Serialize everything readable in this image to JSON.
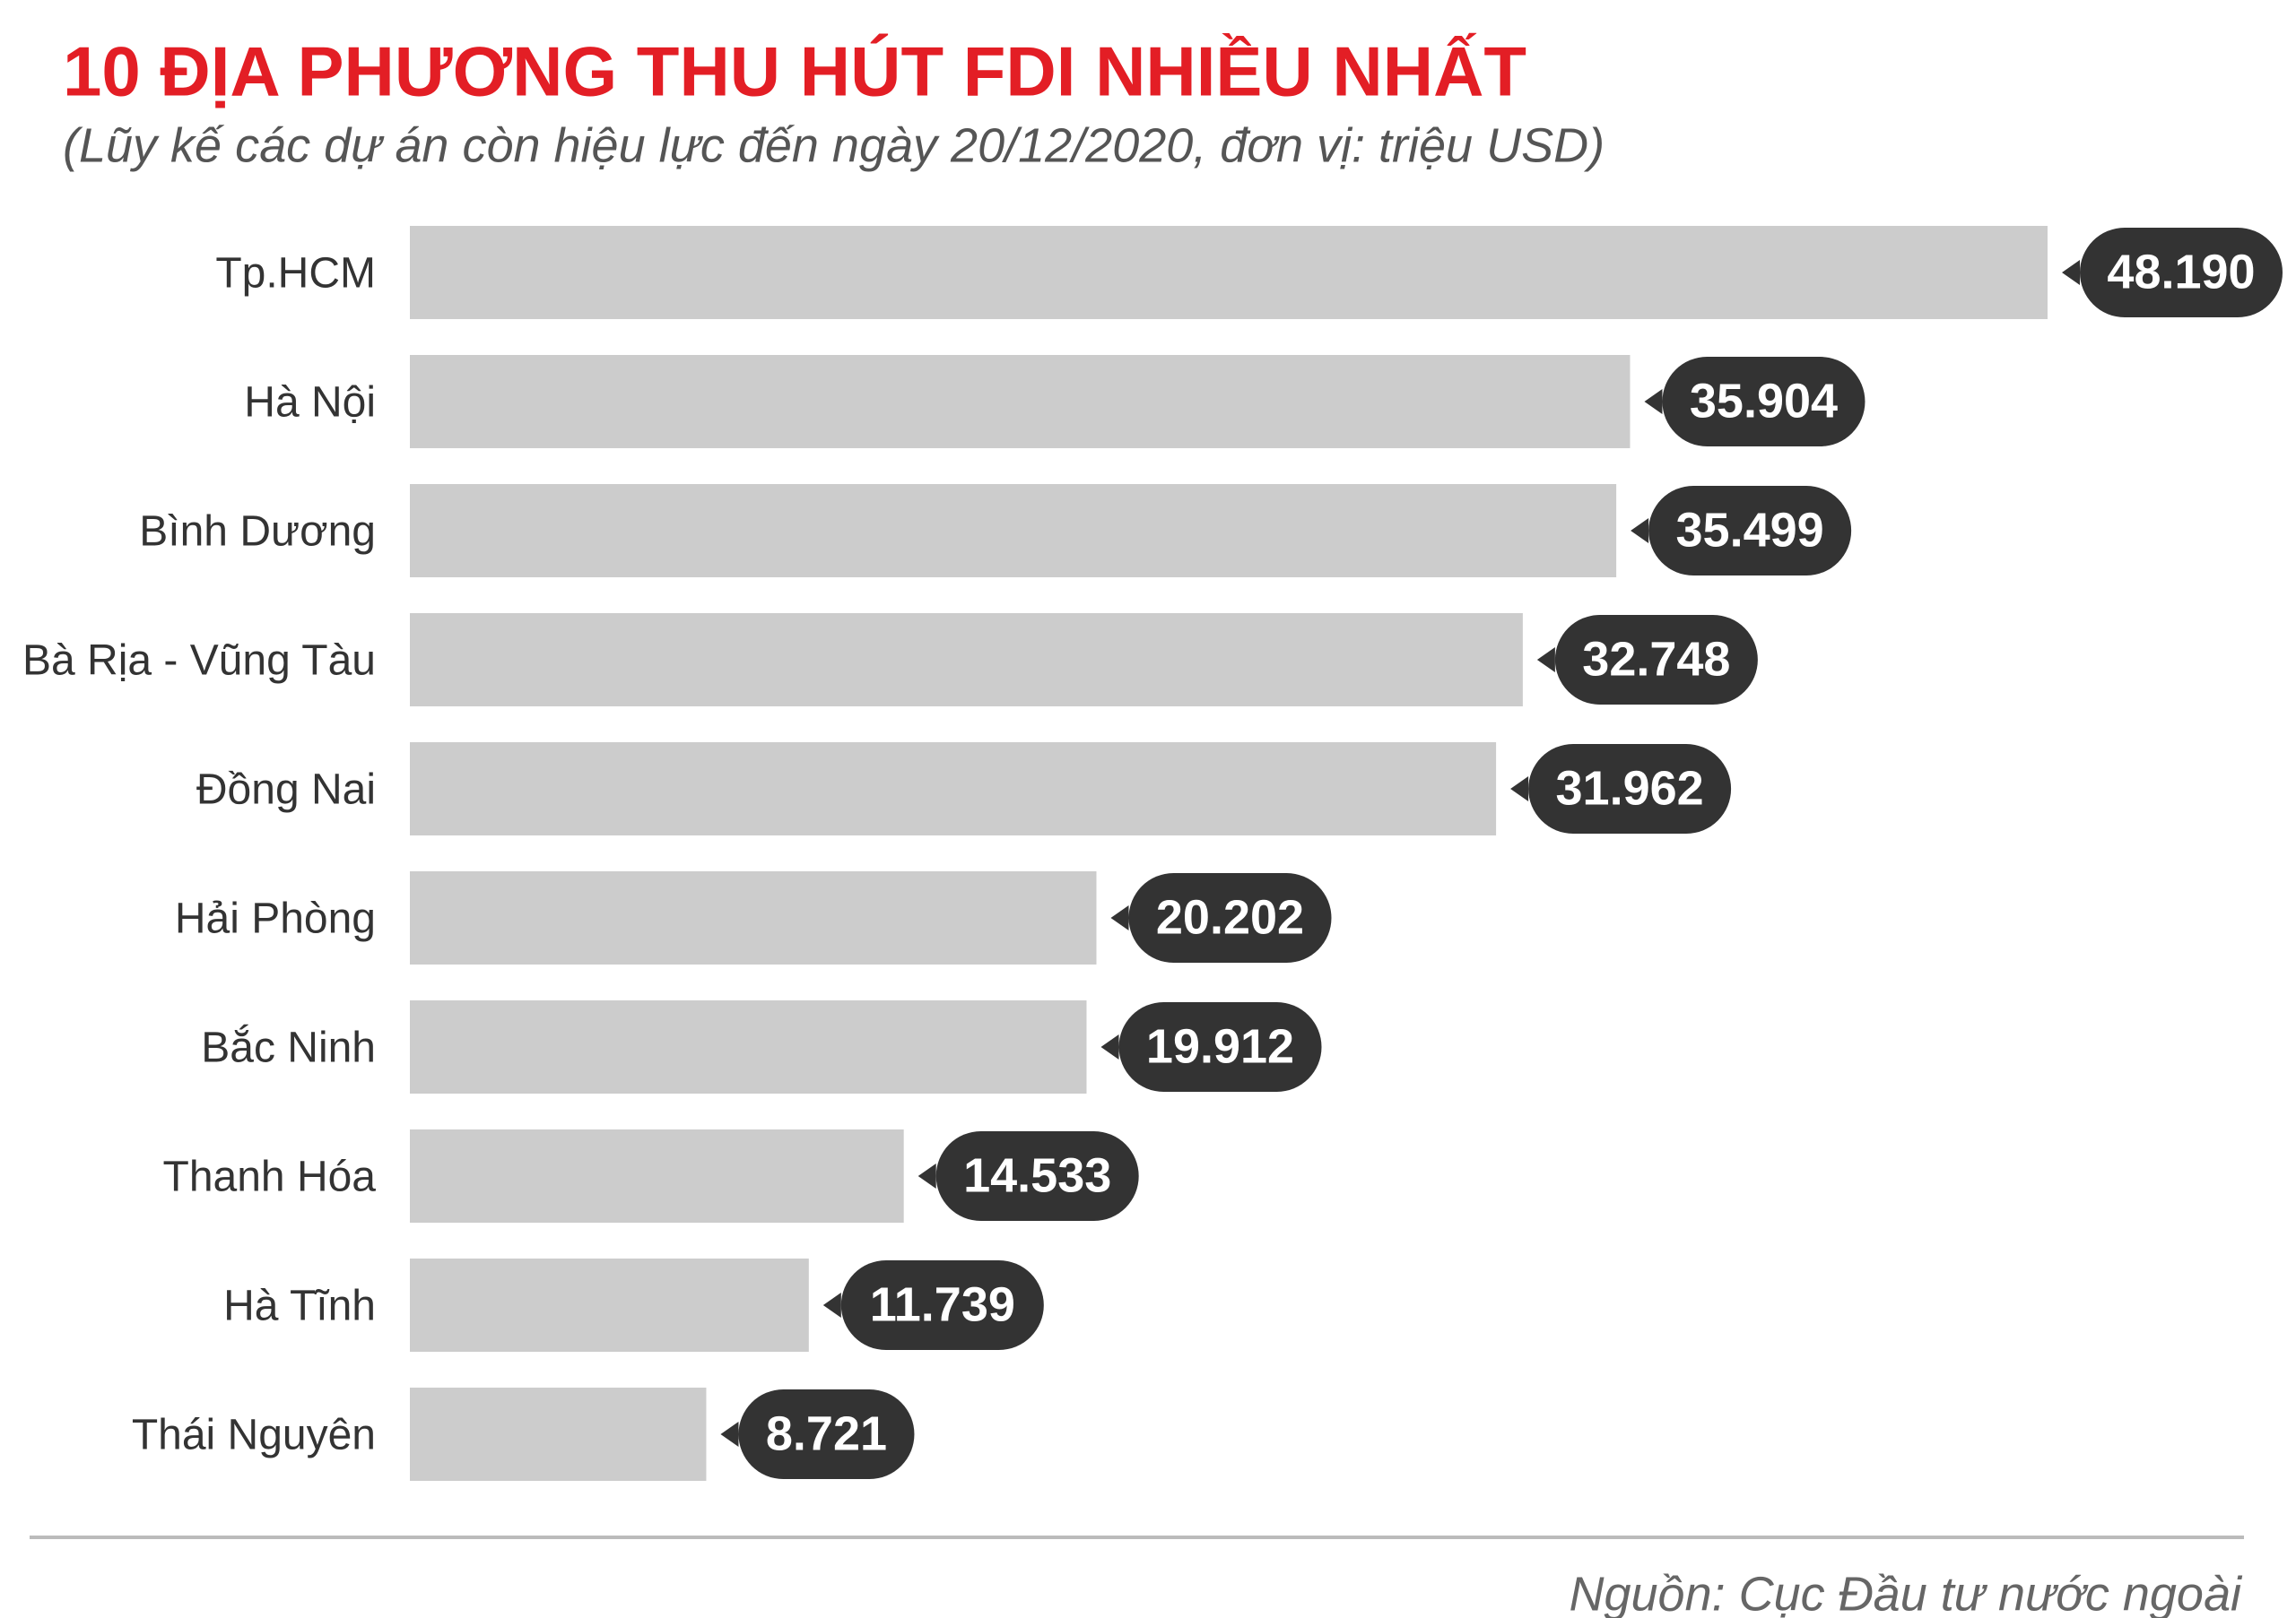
{
  "chart_data": {
    "type": "bar",
    "orientation": "horizontal",
    "title": "10 ĐỊA PHƯƠNG THU HÚT FDI NHIỀU NHẤT",
    "subtitle": "(Lũy kế các dự án còn hiệu lực đến ngày 20/12/2020, đơn vị: triệu USD)",
    "categories": [
      "Tp.HCM",
      "Hà Nội",
      "Bình Dương",
      "Bà Rịa - Vũng Tàu",
      "Đồng Nai",
      "Hải Phòng",
      "Bắc Ninh",
      "Thanh Hóa",
      "Hà Tĩnh",
      "Thái Nguyên"
    ],
    "values": [
      48190,
      35904,
      35499,
      32748,
      31962,
      20202,
      19912,
      14533,
      11739,
      8721
    ],
    "value_labels": [
      "48.190",
      "35.904",
      "35.499",
      "32.748",
      "31.962",
      "20.202",
      "19.912",
      "14.533",
      "11.739",
      "8.721"
    ],
    "color": "#cccccc",
    "label_color": "#333333",
    "source": "Nguồn: Cục Đầu tư nước ngoài"
  }
}
